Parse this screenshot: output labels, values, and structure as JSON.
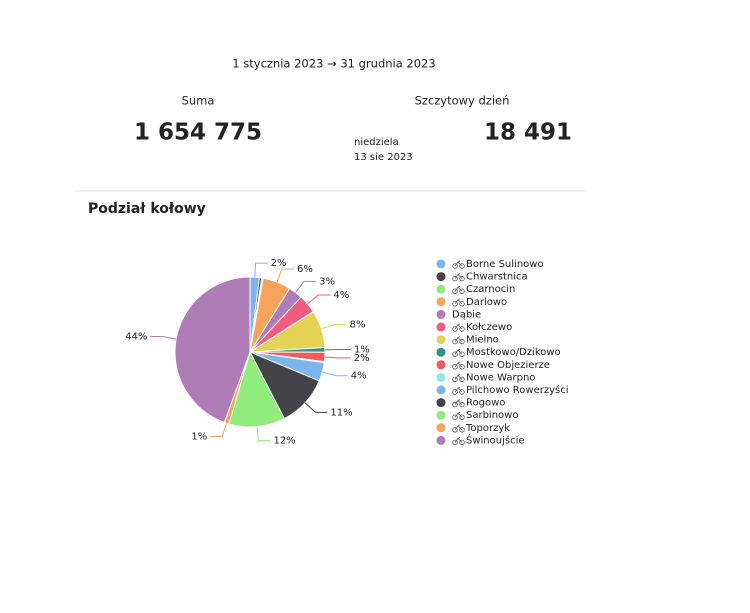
{
  "header": {
    "date_range": "1 stycznia 2023 → 31 grudnia 2023",
    "total_label": "Suma",
    "total_value": "1 654 775",
    "peak_label": "Szczytowy dzień",
    "peak_day": "niedziela",
    "peak_date": "13 sie 2023",
    "peak_value": "18 491"
  },
  "chart_data": {
    "type": "pie",
    "title": "Podział kołowy",
    "categories": [
      "Borne Sulinowo",
      "Chwarstnica",
      "Czarnocin",
      "Darlowo",
      "Dąbie",
      "Kołczewo",
      "Mielno",
      "Mostkowo/Dzikowo",
      "Nowe Objezierze",
      "Nowe Warpno",
      "Pilchowo Rowerzyści",
      "Rogowo",
      "Sarbinowo",
      "Toporzyk",
      "Świnoujście"
    ],
    "values": [
      2,
      0.5,
      0.3,
      6,
      3,
      4,
      8,
      1,
      2,
      0.2,
      4,
      11,
      12,
      1,
      44
    ],
    "value_labels": [
      "2%",
      null,
      null,
      "6%",
      "3%",
      "4%",
      "8%",
      "1%",
      "2%",
      null,
      "4%",
      "11%",
      "12%",
      "1%",
      "44%"
    ],
    "colors": [
      "#7cb5ec",
      "#434348",
      "#90ed7d",
      "#f7a35c",
      "#b07cb8",
      "#f15c80",
      "#e4d354",
      "#2b908f",
      "#f45b5b",
      "#91e8e1",
      "#7cb5ec",
      "#434348",
      "#90ed7d",
      "#f7a35c",
      "#b07cb8"
    ],
    "bike_icon": [
      true,
      true,
      true,
      true,
      false,
      true,
      true,
      true,
      true,
      true,
      true,
      true,
      true,
      true,
      true
    ]
  }
}
